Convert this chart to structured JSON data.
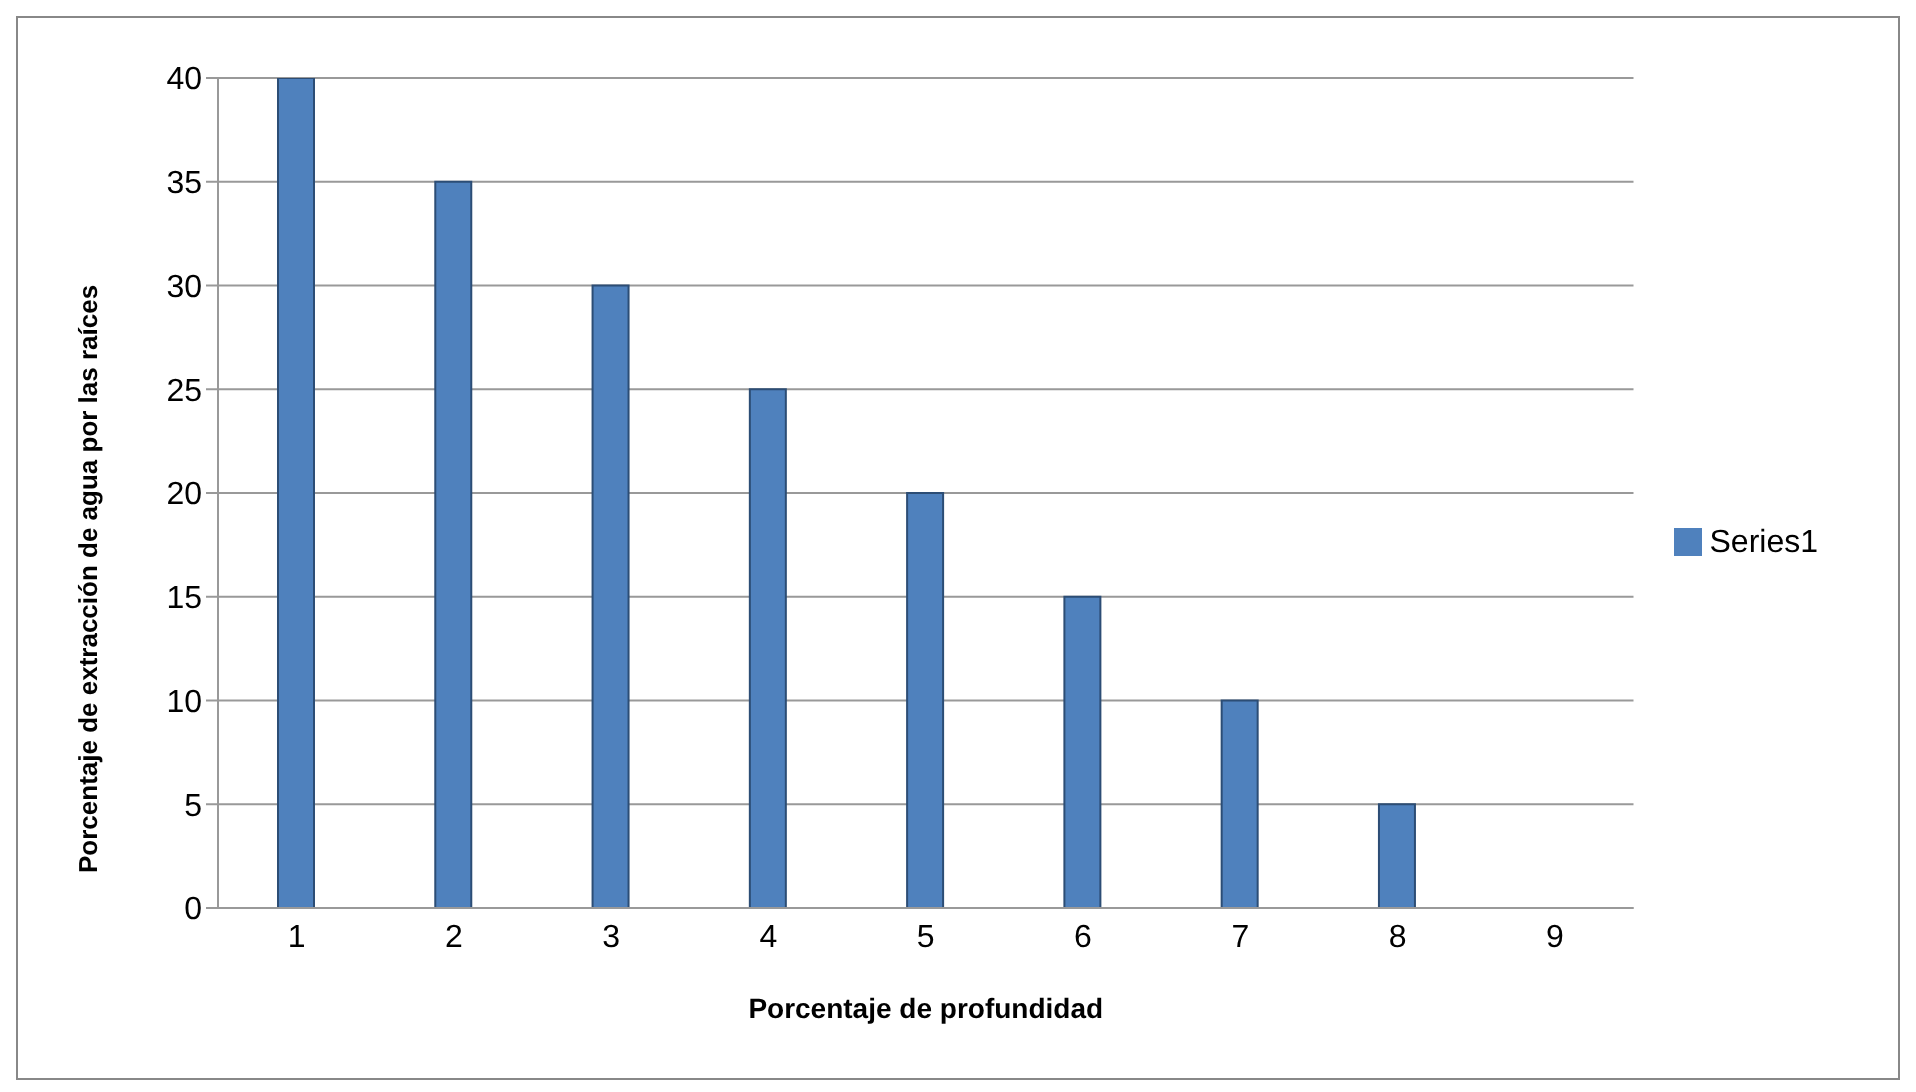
{
  "chart_data": {
    "type": "bar",
    "xlabel": "Porcentaje de  profundidad",
    "ylabel": "Porcentaje de extracción  de agua  por las raíces",
    "categories": [
      "1",
      "2",
      "3",
      "4",
      "5",
      "6",
      "7",
      "8",
      "9"
    ],
    "series": [
      {
        "name": "Series1",
        "color": "#4f81bd",
        "values": [
          40,
          35,
          30,
          25,
          20,
          15,
          10,
          5,
          0
        ]
      }
    ],
    "ylim": [
      0,
      40
    ],
    "yticks": [
      0,
      5,
      10,
      15,
      20,
      25,
      30,
      35,
      40
    ],
    "grid": "y",
    "legend": "right"
  }
}
